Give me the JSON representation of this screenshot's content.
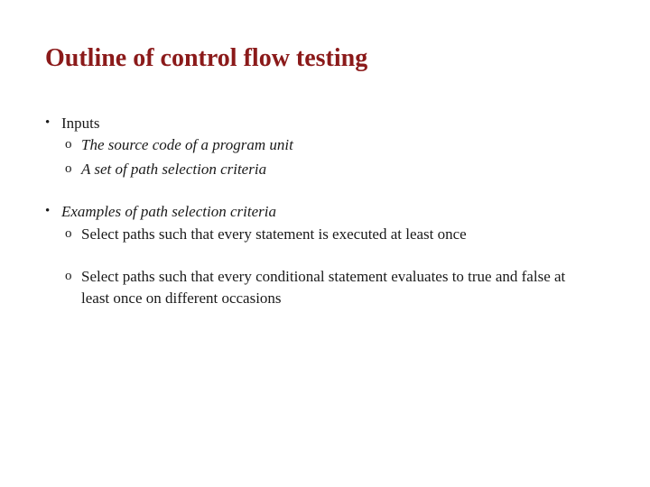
{
  "slide": {
    "title": "Outline of control flow testing",
    "title_color": "#8b1a1a",
    "body_color": "#1a1a1a",
    "background_color": "#ffffff",
    "title_fontsize": 28,
    "body_fontsize": 17,
    "bullets": [
      {
        "text": "Inputs",
        "italic": false,
        "sub": [
          {
            "text": "The source code of a program unit",
            "italic": true,
            "spaced_after": false
          },
          {
            "text": "A set of path selection criteria",
            "italic": true,
            "spaced_after": false
          }
        ]
      },
      {
        "text": "Examples of path selection criteria",
        "italic": true,
        "sub": [
          {
            "text": "Select paths such that every statement is executed at least once",
            "italic": false,
            "spaced_after": true
          },
          {
            "text": "Select paths such that every conditional statement evaluates to true and false at least once on different occasions",
            "italic": false,
            "spaced_after": false
          }
        ]
      }
    ],
    "bullet_marker": "•",
    "sub_marker": "o"
  }
}
